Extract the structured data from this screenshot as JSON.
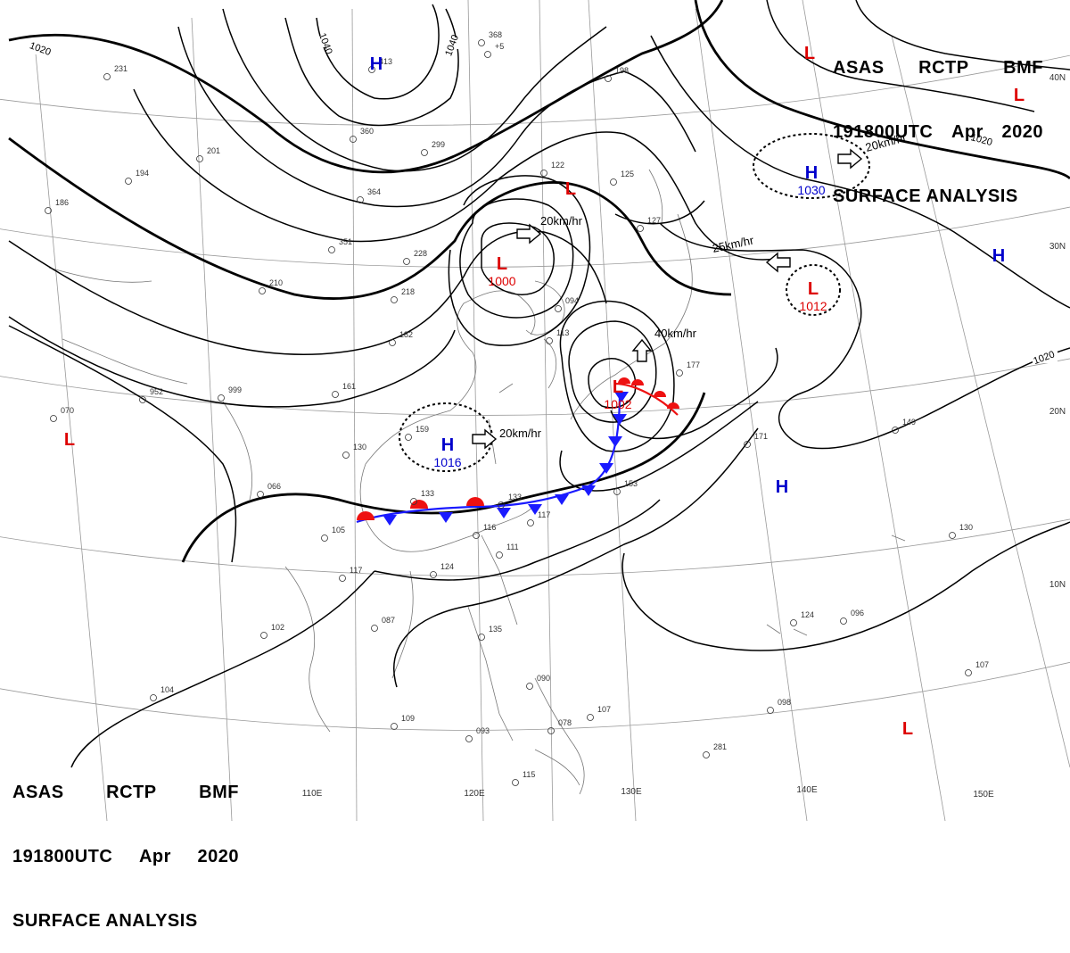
{
  "header_top": {
    "line1": [
      "ASAS",
      "RCTP",
      "BMF"
    ],
    "line2": [
      "191800UTC",
      "Apr",
      "2020"
    ],
    "line3": "SURFACE ANALYSIS"
  },
  "header_bottom": {
    "line1": [
      "ASAS",
      "RCTP",
      "BMF"
    ],
    "line2": [
      "191800UTC",
      "Apr",
      "2020"
    ],
    "line3": "SURFACE ANALYSIS"
  },
  "lon_labels": [
    "110E",
    "120E",
    "130E",
    "140E",
    "150E"
  ],
  "lat_labels": [
    "40N",
    "30N",
    "20N",
    "10N"
  ],
  "isobar_labels": [
    "1020",
    "1040",
    "1040",
    "1020",
    "1020"
  ],
  "pressure_centers": [
    {
      "type": "H",
      "value": "",
      "color": "#0000cc"
    },
    {
      "type": "L",
      "value": "1000",
      "color": "#dd0000"
    },
    {
      "type": "L",
      "value": "",
      "color": "#dd0000"
    },
    {
      "type": "L",
      "value": "1002",
      "color": "#dd0000"
    },
    {
      "type": "H",
      "value": "1016",
      "color": "#0000cc"
    },
    {
      "type": "H",
      "value": "1030",
      "color": "#0000cc"
    },
    {
      "type": "L",
      "value": "1012",
      "color": "#dd0000"
    },
    {
      "type": "L",
      "value": "",
      "color": "#dd0000"
    },
    {
      "type": "L",
      "value": "",
      "color": "#dd0000"
    },
    {
      "type": "H",
      "value": "",
      "color": "#0000cc"
    },
    {
      "type": "H",
      "value": "",
      "color": "#0000cc"
    },
    {
      "type": "L",
      "value": "",
      "color": "#dd0000"
    },
    {
      "type": "L",
      "value": "",
      "color": "#dd0000"
    }
  ],
  "motion_vectors": [
    "20km/hr",
    "20km/hr",
    "25km/hr",
    "40km/hr",
    "20km/hr"
  ],
  "station_reports": [
    "368",
    "+5",
    "231",
    "413",
    "360",
    "299",
    "201",
    "194",
    "186",
    "364",
    "351",
    "228",
    "210",
    "218",
    "182",
    "161",
    "999",
    "952",
    "070",
    "159",
    "130",
    "066",
    "133",
    "133",
    "117",
    "116",
    "111",
    "124",
    "105",
    "117",
    "087",
    "102",
    "104",
    "109",
    "093",
    "115",
    "090",
    "107",
    "078",
    "135",
    "153",
    "177",
    "171",
    "149",
    "130",
    "124",
    "096",
    "107",
    "098",
    "281",
    "198",
    "127",
    "125",
    "094",
    "113",
    "122"
  ],
  "colors": {
    "high": "#0000cc",
    "low": "#dd0000",
    "cold_front": "#1a1aff",
    "warm_front": "#ee1111"
  }
}
